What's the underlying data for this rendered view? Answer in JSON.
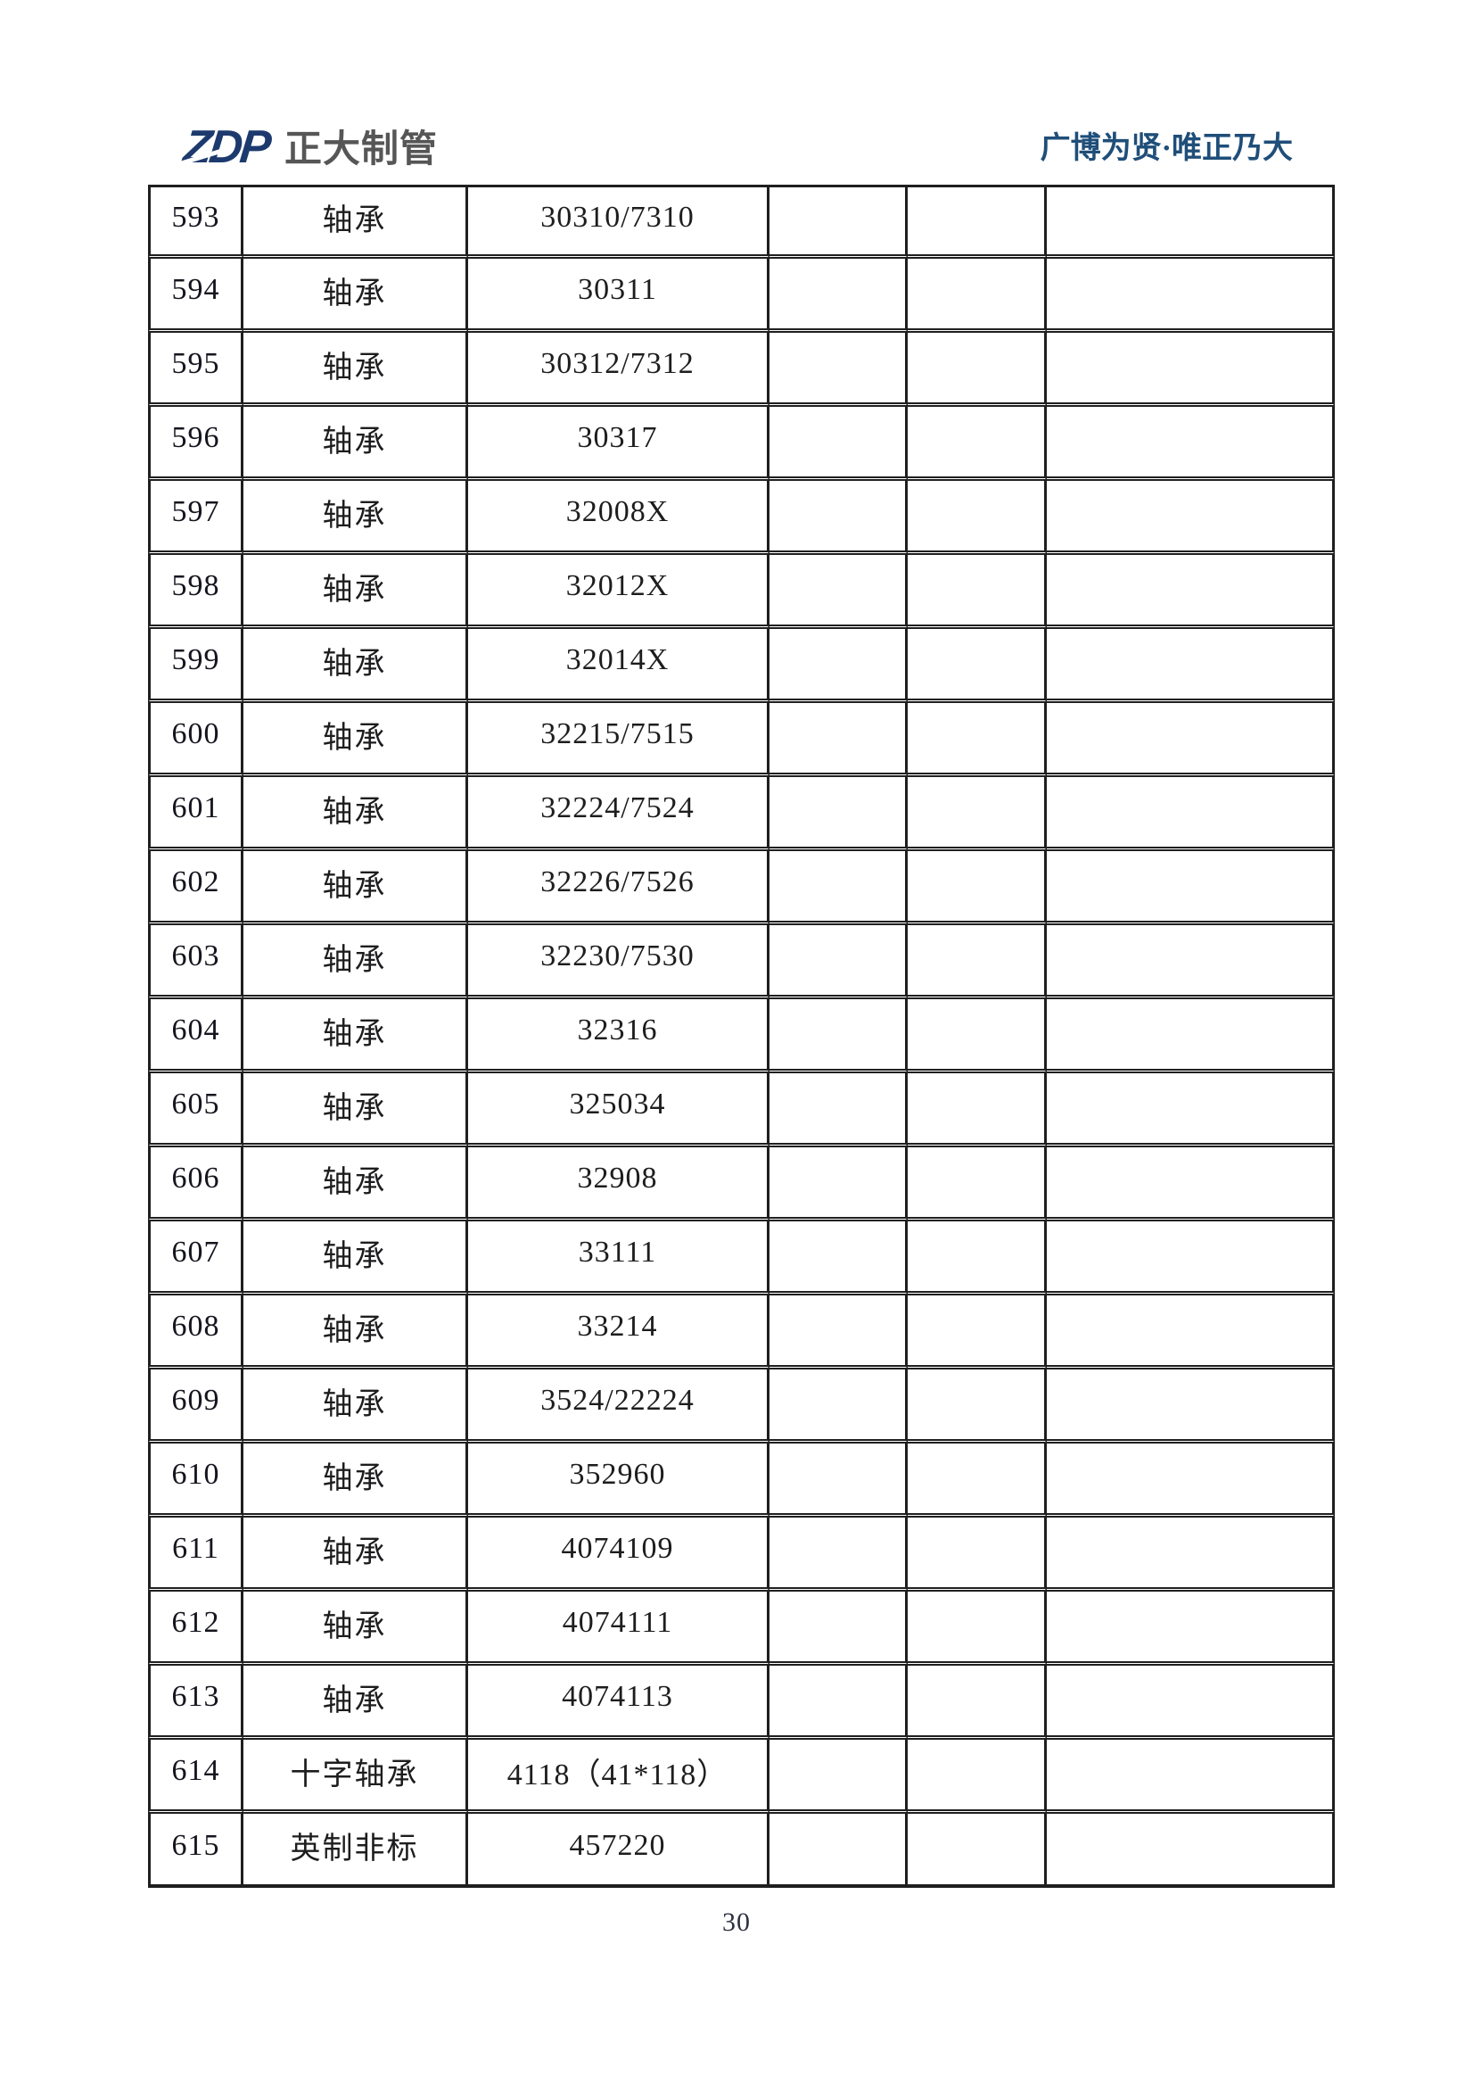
{
  "header": {
    "logo_zdp": "ZDP",
    "logo_name": "正大制管",
    "slogan": "广博为贤·唯正乃大"
  },
  "colors": {
    "logo_blue": "#1d3a6e",
    "logo_gray": "#565656",
    "slogan_blue": "#1f4e79",
    "table_border": "#1f1f1f",
    "text": "#1d1d1f"
  },
  "table": {
    "column_names": [
      "row-number-cell",
      "item-name-cell",
      "model-number-cell",
      "empty-cell-1",
      "empty-cell-2",
      "empty-cell-3"
    ],
    "rows": [
      [
        "593",
        "轴承",
        "30310/7310",
        "",
        "",
        ""
      ],
      [
        "594",
        "轴承",
        "30311",
        "",
        "",
        ""
      ],
      [
        "595",
        "轴承",
        "30312/7312",
        "",
        "",
        ""
      ],
      [
        "596",
        "轴承",
        "30317",
        "",
        "",
        ""
      ],
      [
        "597",
        "轴承",
        "32008X",
        "",
        "",
        ""
      ],
      [
        "598",
        "轴承",
        "32012X",
        "",
        "",
        ""
      ],
      [
        "599",
        "轴承",
        "32014X",
        "",
        "",
        ""
      ],
      [
        "600",
        "轴承",
        "32215/7515",
        "",
        "",
        ""
      ],
      [
        "601",
        "轴承",
        "32224/7524",
        "",
        "",
        ""
      ],
      [
        "602",
        "轴承",
        "32226/7526",
        "",
        "",
        ""
      ],
      [
        "603",
        "轴承",
        "32230/7530",
        "",
        "",
        ""
      ],
      [
        "604",
        "轴承",
        "32316",
        "",
        "",
        ""
      ],
      [
        "605",
        "轴承",
        "325034",
        "",
        "",
        ""
      ],
      [
        "606",
        "轴承",
        "32908",
        "",
        "",
        ""
      ],
      [
        "607",
        "轴承",
        "33111",
        "",
        "",
        ""
      ],
      [
        "608",
        "轴承",
        "33214",
        "",
        "",
        ""
      ],
      [
        "609",
        "轴承",
        "3524/22224",
        "",
        "",
        ""
      ],
      [
        "610",
        "轴承",
        "352960",
        "",
        "",
        ""
      ],
      [
        "611",
        "轴承",
        "4074109",
        "",
        "",
        ""
      ],
      [
        "612",
        "轴承",
        "4074111",
        "",
        "",
        ""
      ],
      [
        "613",
        "轴承",
        "4074113",
        "",
        "",
        ""
      ],
      [
        "614",
        "十字轴承",
        "4118（41*118）",
        "",
        "",
        ""
      ],
      [
        "615",
        "英制非标",
        "457220",
        "",
        "",
        ""
      ]
    ]
  },
  "footer": {
    "page_number": "30"
  }
}
